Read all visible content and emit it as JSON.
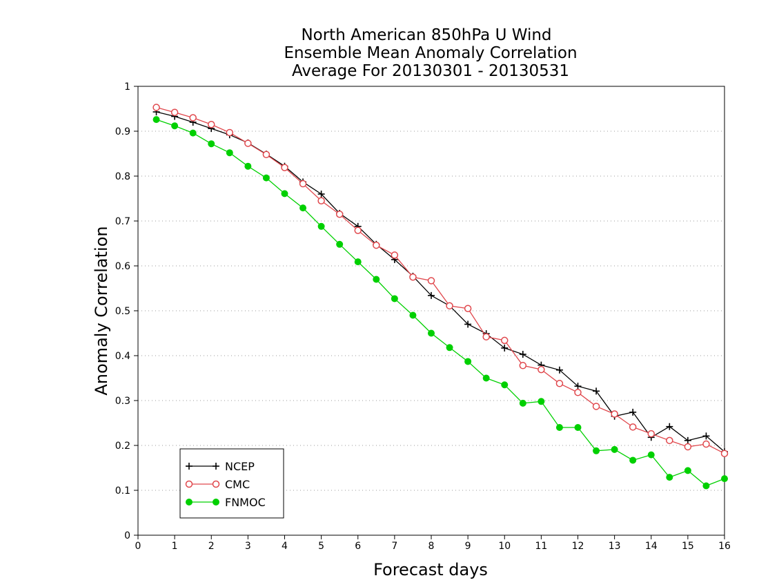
{
  "chart_data": {
    "type": "line",
    "title": [
      "North American 850hPa U Wind",
      "Ensemble Mean Anomaly Correlation",
      "Average For 20130301 - 20130531"
    ],
    "xlabel": "Forecast days",
    "ylabel": "Anomaly Correlation",
    "xlim": [
      0,
      16
    ],
    "ylim": [
      0,
      1
    ],
    "xticks": [
      "0",
      "1",
      "2",
      "3",
      "4",
      "5",
      "6",
      "7",
      "8",
      "9",
      "10",
      "11",
      "12",
      "13",
      "14",
      "15",
      "16"
    ],
    "yticks": [
      "0",
      "0.1",
      "0.2",
      "0.3",
      "0.4",
      "0.5",
      "0.6",
      "0.7",
      "0.8",
      "0.9",
      "1"
    ],
    "grid": "horizontal dotted",
    "legend_position": "bottom-left",
    "x": [
      0.5,
      1,
      1.5,
      2,
      2.5,
      3,
      3.5,
      4,
      4.5,
      5,
      5.5,
      6,
      6.5,
      7,
      7.5,
      8,
      8.5,
      9,
      9.5,
      10,
      10.5,
      11,
      11.5,
      12,
      12.5,
      13,
      13.5,
      14,
      14.5,
      15,
      15.5,
      16
    ],
    "series": [
      {
        "name": "NCEP",
        "color": "#000000",
        "marker": "plus",
        "values": [
          0.943,
          0.933,
          0.92,
          0.906,
          0.892,
          0.874,
          0.849,
          0.822,
          0.787,
          0.76,
          0.717,
          0.688,
          0.648,
          0.614,
          0.577,
          0.534,
          0.511,
          0.47,
          0.449,
          0.417,
          0.403,
          0.379,
          0.368,
          0.332,
          0.321,
          0.265,
          0.274,
          0.218,
          0.242,
          0.211,
          0.221,
          0.186
        ]
      },
      {
        "name": "CMC",
        "color": "#e0474c",
        "marker": "open-circle",
        "values": [
          0.953,
          0.942,
          0.93,
          0.915,
          0.897,
          0.873,
          0.848,
          0.819,
          0.783,
          0.745,
          0.715,
          0.679,
          0.646,
          0.624,
          0.575,
          0.567,
          0.511,
          0.505,
          0.442,
          0.434,
          0.378,
          0.369,
          0.338,
          0.318,
          0.287,
          0.27,
          0.241,
          0.226,
          0.211,
          0.197,
          0.203,
          0.182
        ]
      },
      {
        "name": "FNMOC",
        "color": "#00d000",
        "marker": "filled-circle",
        "values": [
          0.926,
          0.912,
          0.896,
          0.872,
          0.852,
          0.822,
          0.796,
          0.761,
          0.729,
          0.688,
          0.648,
          0.609,
          0.57,
          0.527,
          0.49,
          0.45,
          0.418,
          0.387,
          0.35,
          0.335,
          0.294,
          0.298,
          0.24,
          0.24,
          0.188,
          0.191,
          0.167,
          0.179,
          0.129,
          0.144,
          0.11,
          0.126
        ]
      }
    ]
  }
}
